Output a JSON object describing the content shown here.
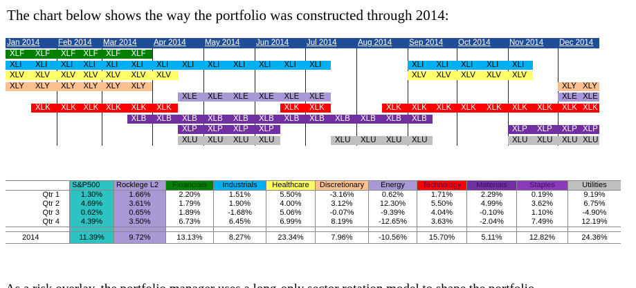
{
  "intro_text": "The chart below shows the way the portfolio was constructed through 2014:",
  "months": [
    "Jan 2014",
    "Feb 2014",
    "Mar 2014",
    "Apr 2014",
    "May 2014",
    "Jun 2014",
    "Jul 2014",
    "Aug 2014",
    "Sep 2014",
    "Oct 2014",
    "Nov 2014",
    "Dec 2014"
  ],
  "holdings": [
    {
      "symbol": "XLF",
      "color": "#008000",
      "from_half": 0,
      "to_half": 6
    },
    {
      "symbol": "XLI",
      "color": "#00b0f0",
      "from_half": 0,
      "to_half": 13
    },
    {
      "symbol": "XLI",
      "color": "#00b0f0",
      "from_half": 16,
      "to_half": 21
    },
    {
      "symbol": "XLV",
      "color": "#ffff66",
      "from_half": 0,
      "to_half": 7
    },
    {
      "symbol": "XLV",
      "color": "#ffff66",
      "from_half": 16,
      "to_half": 21
    },
    {
      "symbol": "XLY",
      "color": "#fac090",
      "from_half": 0,
      "to_half": 6
    },
    {
      "symbol": "XLY",
      "color": "#fac090",
      "from_half": 22,
      "to_half": 24
    },
    {
      "symbol": "XLE",
      "color": "#a899d6",
      "from_half": 7,
      "to_half": 13
    },
    {
      "symbol": "XLE",
      "color": "#a899d6",
      "from_half": 22,
      "to_half": 24
    },
    {
      "symbol": "XLK",
      "color": "#ff0000",
      "from_half": 1,
      "to_half": 7
    },
    {
      "symbol": "XLK",
      "color": "#ff0000",
      "from_half": 11,
      "to_half": 13
    },
    {
      "symbol": "XLK",
      "color": "#ff0000",
      "from_half": 15,
      "to_half": 24
    },
    {
      "symbol": "XLB",
      "color": "#7030a0",
      "from_half": 5,
      "to_half": 17
    },
    {
      "symbol": "XLP",
      "color": "#7030a0",
      "from_half": 7,
      "to_half": 11
    },
    {
      "symbol": "XLP",
      "color": "#7030a0",
      "from_half": 20,
      "to_half": 24
    },
    {
      "symbol": "XLU",
      "color": "#bfbfbf",
      "from_half": 7,
      "to_half": 11
    },
    {
      "symbol": "XLU",
      "color": "#bfbfbf",
      "from_half": 13,
      "to_half": 17
    },
    {
      "symbol": "XLU",
      "color": "#bfbfbf",
      "from_half": 20,
      "to_half": 24
    }
  ],
  "returns_table": {
    "columns": [
      {
        "label": "S&P500",
        "color": "#2ec3c3",
        "tint": true
      },
      {
        "label": "Rocklege L2",
        "color": "#a899d6",
        "tint": true
      },
      {
        "label": "Financials",
        "color": "#008000"
      },
      {
        "label": "Industrials",
        "color": "#00b0f0"
      },
      {
        "label": "Healthcare",
        "color": "#ffff66"
      },
      {
        "label": "Discretionary",
        "color": "#fac090"
      },
      {
        "label": "Energy",
        "color": "#a899d6"
      },
      {
        "label": "Technology",
        "color": "#ff0000"
      },
      {
        "label": "Materials",
        "color": "#7030a0"
      },
      {
        "label": "Staples",
        "color": "#8b3ab8"
      },
      {
        "label": "Utilities",
        "color": "#bfbfbf"
      }
    ],
    "rows": [
      {
        "period": "Qtr 1",
        "values": [
          "1.30%",
          "1.66%",
          "2.20%",
          "1.51%",
          "5.50%",
          "-3.16%",
          "0.62%",
          "1.71%",
          "2.29%",
          "0.19%",
          "9.19%"
        ]
      },
      {
        "period": "Qtr 2",
        "values": [
          "4.69%",
          "3.61%",
          "1.79%",
          "1.90%",
          "4.00%",
          "3.12%",
          "12.30%",
          "5.50%",
          "4.99%",
          "3.62%",
          "6.75%"
        ]
      },
      {
        "period": "Qtr 3",
        "values": [
          "0.62%",
          "0.65%",
          "1.89%",
          "-1.68%",
          "5.06%",
          "-0.07%",
          "-9.39%",
          "4.04%",
          "-0.10%",
          "1.10%",
          "-4.90%"
        ]
      },
      {
        "period": "Qtr 4",
        "values": [
          "4.39%",
          "3.50%",
          "6.73%",
          "6.45%",
          "6.99%",
          "8.19%",
          "-12.65%",
          "3.63%",
          "-2.04%",
          "7.49%",
          "12.19%"
        ]
      }
    ],
    "total": {
      "period": "2014",
      "values": [
        "11.39%",
        "9.72%",
        "13.13%",
        "8.27%",
        "23.34%",
        "7.96%",
        "-10.56%",
        "15.70%",
        "5.11%",
        "12.82%",
        "24.36%"
      ]
    }
  },
  "cutoff_text": "As a risk overlay, the portfolio manager uses a long-only sector rotation model to shape the portfolio"
}
